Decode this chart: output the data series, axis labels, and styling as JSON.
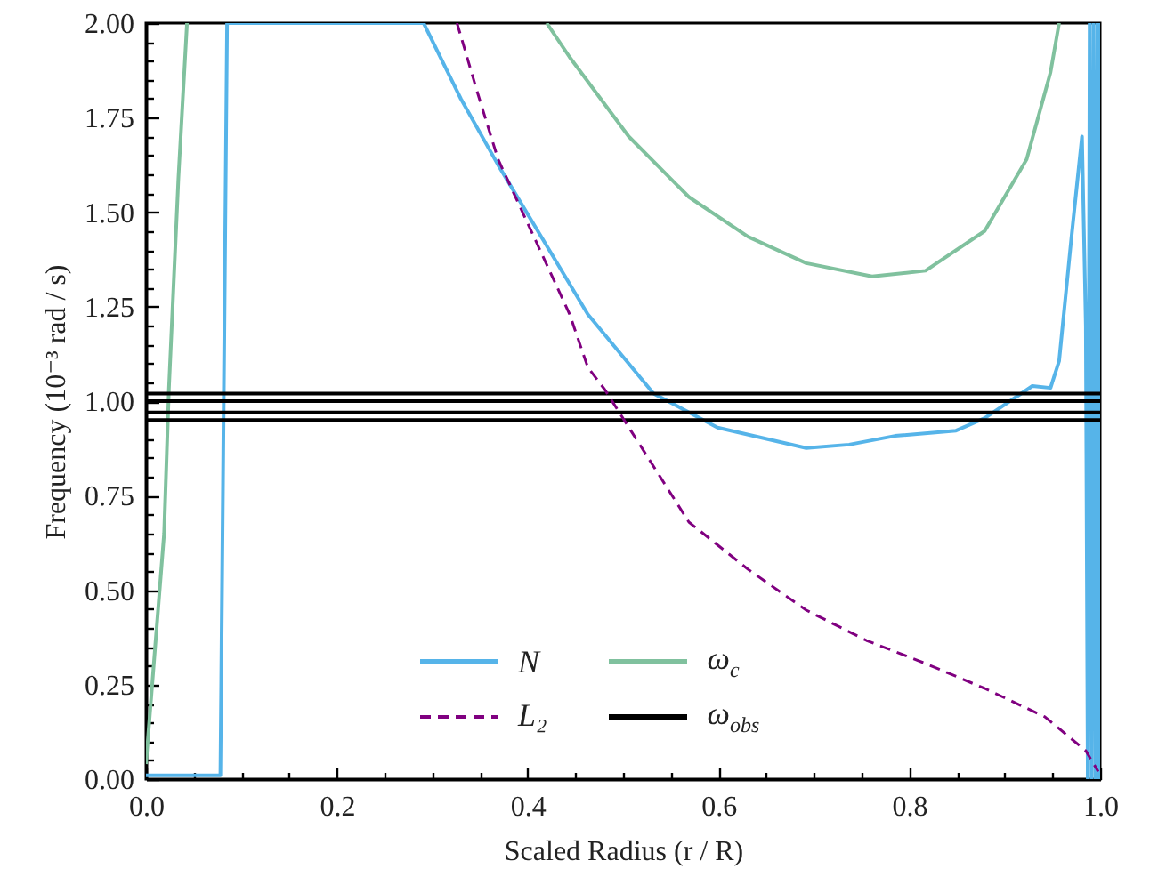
{
  "chart_data": {
    "type": "line",
    "xlabel": "Scaled Radius (r / R)",
    "ylabel": "Frequency (10⁻³ rad / s)",
    "xlim": [
      0,
      1
    ],
    "ylim": [
      0,
      2
    ],
    "xticks": [
      {
        "value": 0,
        "label": "0.0"
      },
      {
        "value": 0.05,
        "label": null
      },
      {
        "value": 0.1,
        "label": null
      },
      {
        "value": 0.15,
        "label": null
      },
      {
        "value": 0.2,
        "label": "0.2"
      },
      {
        "value": 0.25,
        "label": null
      },
      {
        "value": 0.3,
        "label": null
      },
      {
        "value": 0.35,
        "label": null
      },
      {
        "value": 0.4,
        "label": "0.4"
      },
      {
        "value": 0.45,
        "label": null
      },
      {
        "value": 0.5,
        "label": null
      },
      {
        "value": 0.55,
        "label": null
      },
      {
        "value": 0.6,
        "label": "0.6"
      },
      {
        "value": 0.65,
        "label": null
      },
      {
        "value": 0.7,
        "label": null
      },
      {
        "value": 0.75,
        "label": null
      },
      {
        "value": 0.8,
        "label": "0.8"
      },
      {
        "value": 0.85,
        "label": null
      },
      {
        "value": 0.9,
        "label": null
      },
      {
        "value": 0.95,
        "label": null
      },
      {
        "value": 1,
        "label": "1.0"
      }
    ],
    "yticks": [
      {
        "value": 0,
        "label": "0.00"
      },
      {
        "value": 0.05,
        "label": null
      },
      {
        "value": 0.1,
        "label": null
      },
      {
        "value": 0.15,
        "label": null
      },
      {
        "value": 0.2,
        "label": null
      },
      {
        "value": 0.25,
        "label": "0.25"
      },
      {
        "value": 0.3,
        "label": null
      },
      {
        "value": 0.35,
        "label": null
      },
      {
        "value": 0.4,
        "label": null
      },
      {
        "value": 0.45,
        "label": null
      },
      {
        "value": 0.5,
        "label": "0.50"
      },
      {
        "value": 0.55,
        "label": null
      },
      {
        "value": 0.6,
        "label": null
      },
      {
        "value": 0.65,
        "label": null
      },
      {
        "value": 0.7,
        "label": null
      },
      {
        "value": 0.75,
        "label": "0.75"
      },
      {
        "value": 0.8,
        "label": null
      },
      {
        "value": 0.85,
        "label": null
      },
      {
        "value": 0.9,
        "label": null
      },
      {
        "value": 0.95,
        "label": null
      },
      {
        "value": 1,
        "label": "1.00"
      },
      {
        "value": 1.05,
        "label": null
      },
      {
        "value": 1.1,
        "label": null
      },
      {
        "value": 1.15,
        "label": null
      },
      {
        "value": 1.2,
        "label": null
      },
      {
        "value": 1.25,
        "label": "1.25"
      },
      {
        "value": 1.3,
        "label": null
      },
      {
        "value": 1.35,
        "label": null
      },
      {
        "value": 1.4,
        "label": null
      },
      {
        "value": 1.45,
        "label": null
      },
      {
        "value": 1.5,
        "label": "1.50"
      },
      {
        "value": 1.55,
        "label": null
      },
      {
        "value": 1.6,
        "label": null
      },
      {
        "value": 1.65,
        "label": null
      },
      {
        "value": 1.7,
        "label": null
      },
      {
        "value": 1.75,
        "label": "1.75"
      },
      {
        "value": 1.8,
        "label": null
      },
      {
        "value": 1.85,
        "label": null
      },
      {
        "value": 1.9,
        "label": null
      },
      {
        "value": 1.95,
        "label": null
      },
      {
        "value": 2,
        "label": "2.00"
      }
    ],
    "legend": "bottom",
    "series": [
      {
        "name": "N",
        "color": "#56b4e9",
        "line_style": "solid",
        "x": [
          0,
          0.078,
          0.085,
          0.291,
          0.33,
          0.369,
          0.444,
          0.463,
          0.532,
          0.599,
          0.692,
          0.737,
          0.785,
          0.849,
          0.879,
          0.929,
          0.948,
          0.957,
          0.97,
          0.981,
          0.985,
          0.987,
          0.989,
          0.991,
          0.993,
          0.995,
          0.997,
          0.999,
          1
        ],
        "values": [
          0.01,
          0.01,
          2,
          2,
          1.8,
          1.625,
          1.31,
          1.23,
          1.02,
          0.93,
          0.876,
          0.885,
          0.908,
          0.922,
          0.955,
          1.04,
          1.035,
          1.106,
          1.435,
          1.7,
          1.2,
          0,
          2,
          0,
          2,
          0,
          2,
          0,
          2
        ]
      },
      {
        "name": "ω$_{c}$",
        "color": "#80c19e",
        "line_style": "solid",
        "x": [
          0,
          0.009,
          0.019,
          0.024,
          0.034,
          0.043,
          null,
          0.42,
          0.444,
          0.506,
          0.569,
          0.631,
          0.692,
          0.761,
          0.817,
          0.879,
          0.923,
          0.948,
          0.957
        ],
        "values": [
          0.04,
          0.33,
          0.65,
          1.03,
          1.59,
          2,
          null,
          2,
          1.91,
          1.7,
          1.54,
          1.435,
          1.365,
          1.33,
          1.345,
          1.45,
          1.64,
          1.87,
          2
        ]
      },
      {
        "name": "L₂",
        "color": "#800080",
        "line_style": "dashed",
        "x": [
          0.326,
          0.347,
          0.369,
          0.444,
          0.463,
          0.481,
          0.569,
          0.631,
          0.692,
          0.755,
          0.817,
          0.879,
          0.942,
          0.985,
          0.998
        ],
        "values": [
          2,
          1.82,
          1.64,
          1.23,
          1.09,
          1.03,
          0.68,
          0.555,
          0.447,
          0.367,
          0.306,
          0.24,
          0.165,
          0.075,
          0.02
        ]
      },
      {
        "name": "ω$_{obs}$",
        "color": "#000000",
        "line_style": "solid",
        "x": [
          0,
          1
        ],
        "values": [
          1.02,
          1.02
        ]
      },
      {
        "color": "#000000",
        "line_style": "solid",
        "x": [
          0,
          1
        ],
        "values": [
          1,
          1
        ]
      },
      {
        "color": "#000000",
        "line_style": "solid",
        "x": [
          0,
          1
        ],
        "values": [
          0.97,
          0.97
        ]
      },
      {
        "color": "#000000",
        "line_style": "solid",
        "x": [
          0,
          1
        ],
        "values": [
          0.95,
          0.95
        ]
      }
    ]
  }
}
